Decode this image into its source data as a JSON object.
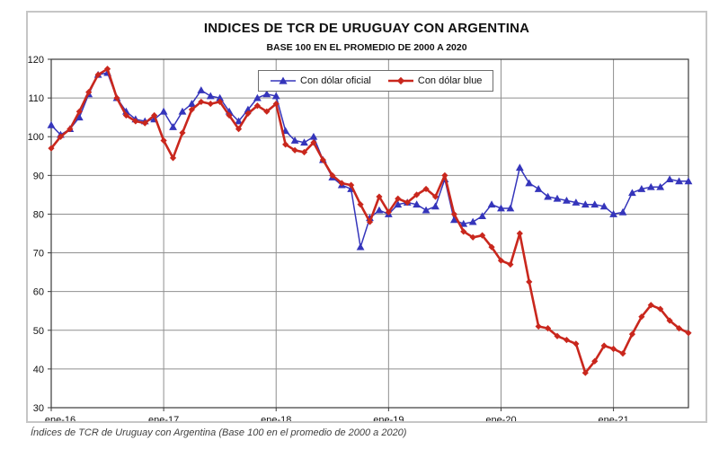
{
  "figure": {
    "title": "INDICES DE TCR DE URUGUAY CON ARGENTINA",
    "subtitle": "BASE 100 EN EL PROMEDIO DE 2000 A 2020",
    "caption": "Índices de TCR de Uruguay con Argentina (Base 100 en el promedio de 2000 a 2020)"
  },
  "chart_data": {
    "type": "line",
    "title": "INDICES DE TCR DE URUGUAY CON ARGENTINA",
    "subtitle": "BASE 100 EN EL PROMEDIO DE 2000 A 2020",
    "x_unit": "month",
    "x_start_label": "ene-16",
    "x_tick_labels": [
      "ene-16",
      "ene-17",
      "ene-18",
      "ene-19",
      "ene-20",
      "ene-21"
    ],
    "x_tick_month_index": [
      0,
      12,
      24,
      36,
      48,
      60
    ],
    "n_points": 69,
    "ylim": [
      30,
      120
    ],
    "y_ticks": [
      30,
      40,
      50,
      60,
      70,
      80,
      90,
      100,
      110,
      120
    ],
    "grid": true,
    "legend_position": "top-center",
    "colors": {
      "oficial": "#3535bb",
      "blue_dollar": "#c9271d",
      "grid": "#8f8f8f",
      "axis": "#3a3a3a"
    },
    "series": [
      {
        "name": "Con dólar oficial",
        "marker": "triangle",
        "color": "#3535bb",
        "values": [
          103,
          100.5,
          102,
          105,
          111,
          116,
          116.5,
          110,
          106.5,
          104.5,
          104,
          104.5,
          106.5,
          102.5,
          106.5,
          108.5,
          112,
          110.5,
          110,
          106.5,
          104,
          107,
          110,
          111,
          110.5,
          101.5,
          99,
          98.5,
          100,
          94,
          89.5,
          87.5,
          86.5,
          71.5,
          79,
          81,
          80,
          82.5,
          83,
          82.5,
          81,
          82,
          89,
          78.5,
          77.5,
          78,
          79.5,
          82.5,
          81.5,
          81.5,
          92,
          88,
          86.5,
          84.5,
          84,
          83.5,
          83,
          82.5,
          82.5,
          82,
          80,
          80.5,
          85.5,
          86.5,
          87,
          87,
          89,
          88.5,
          88.5
        ]
      },
      {
        "name": "Con dólar blue",
        "marker": "diamond",
        "color": "#c9271d",
        "values": [
          97,
          100,
          102,
          106.5,
          111.5,
          116,
          117.5,
          110,
          105.5,
          104,
          103.5,
          105.5,
          99,
          94.5,
          101,
          107,
          109,
          108.5,
          109,
          105.5,
          102,
          106,
          108,
          106.5,
          108.5,
          98,
          96.5,
          96,
          98.5,
          94,
          90,
          88,
          87.5,
          82.5,
          78,
          84.5,
          80.5,
          84,
          83,
          85,
          86.5,
          84.5,
          90,
          80,
          75.5,
          74,
          74.5,
          71.5,
          68,
          67,
          75,
          62.5,
          51,
          50.5,
          48.5,
          47.5,
          46.5,
          39,
          42,
          46,
          45.2,
          44,
          49,
          53.5,
          56.5,
          55.5,
          52.5,
          50.5,
          49.3
        ]
      }
    ]
  }
}
